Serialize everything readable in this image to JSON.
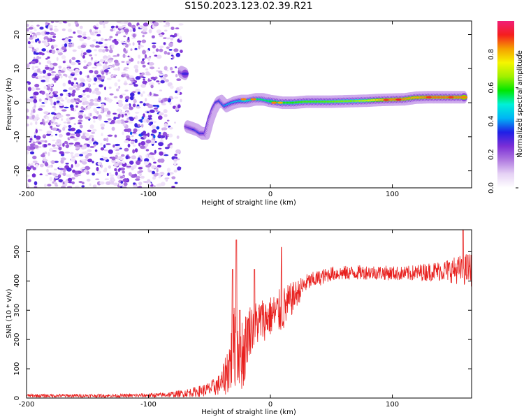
{
  "title": "S150.2023.123.02.39.R21",
  "chart_data": [
    {
      "type": "heatmap",
      "xlabel": "Height of straight line (km)",
      "ylabel": "Frequency (Hz)",
      "xlim": [
        -200,
        165
      ],
      "ylim": [
        -25,
        24
      ],
      "xticks": [
        -200,
        -100,
        0,
        100
      ],
      "xtick_labels": [
        "-200",
        "-100",
        "0",
        "100"
      ],
      "yticks": [
        -20,
        -10,
        0,
        10,
        20
      ],
      "ytick_labels": [
        "-20",
        "-10",
        "0",
        "10",
        "20"
      ],
      "colorbar": {
        "label": "Normalized spectral amplitude",
        "range": [
          0,
          1
        ],
        "ticks": [
          0.0,
          0.2,
          0.4,
          0.6,
          0.8
        ],
        "tick_labels": [
          "0.0",
          "0.2",
          "0.4",
          "0.6",
          "0.8"
        ],
        "colormap": [
          "#ffffff",
          "#e6d2f5",
          "#b07ae0",
          "#7b2fd6",
          "#1f1fe6",
          "#00b4f5",
          "#00f0d8",
          "#00e600",
          "#a0f000",
          "#f5f500",
          "#f5a000",
          "#f51e1e",
          "#f01e78"
        ]
      },
      "noise_region_x": [
        -200,
        -73
      ],
      "ridge": [
        {
          "x": -73,
          "y": 9,
          "v": 0.25
        },
        {
          "x": -70,
          "y": 8.5,
          "v": 0.3
        },
        {
          "x": -68,
          "y": -7,
          "v": 0.25
        },
        {
          "x": -64,
          "y": -7.5,
          "v": 0.3
        },
        {
          "x": -60,
          "y": -8,
          "v": 0.35
        },
        {
          "x": -56,
          "y": -9,
          "v": 0.35
        },
        {
          "x": -52,
          "y": -9,
          "v": 0.3
        },
        {
          "x": -49,
          "y": -5,
          "v": 0.3
        },
        {
          "x": -46,
          "y": -2,
          "v": 0.3
        },
        {
          "x": -43,
          "y": 0,
          "v": 0.35
        },
        {
          "x": -40,
          "y": 0.5,
          "v": 0.35
        },
        {
          "x": -36,
          "y": -1,
          "v": 0.4
        },
        {
          "x": -30,
          "y": 0,
          "v": 0.45
        },
        {
          "x": -24,
          "y": 0.5,
          "v": 0.45
        },
        {
          "x": -18,
          "y": 0.5,
          "v": 0.5
        },
        {
          "x": -12,
          "y": 1,
          "v": 0.55
        },
        {
          "x": -6,
          "y": 1,
          "v": 0.55
        },
        {
          "x": 0,
          "y": 0.5,
          "v": 0.55
        },
        {
          "x": 10,
          "y": 0,
          "v": 0.6
        },
        {
          "x": 20,
          "y": 0,
          "v": 0.6
        },
        {
          "x": 30,
          "y": 0.3,
          "v": 0.62
        },
        {
          "x": 40,
          "y": 0.3,
          "v": 0.62
        },
        {
          "x": 50,
          "y": 0.3,
          "v": 0.63
        },
        {
          "x": 60,
          "y": 0.4,
          "v": 0.65
        },
        {
          "x": 70,
          "y": 0.5,
          "v": 0.65
        },
        {
          "x": 80,
          "y": 0.6,
          "v": 0.7
        },
        {
          "x": 90,
          "y": 0.8,
          "v": 0.78
        },
        {
          "x": 100,
          "y": 0.9,
          "v": 0.85
        },
        {
          "x": 110,
          "y": 1,
          "v": 0.85
        },
        {
          "x": 120,
          "y": 1.5,
          "v": 0.82
        },
        {
          "x": 130,
          "y": 1.6,
          "v": 0.85
        },
        {
          "x": 140,
          "y": 1.6,
          "v": 0.87
        },
        {
          "x": 150,
          "y": 1.6,
          "v": 0.85
        },
        {
          "x": 160,
          "y": 1.6,
          "v": 0.85
        }
      ]
    },
    {
      "type": "line",
      "xlabel": "Height of straight line (km)",
      "ylabel": "SNR (10 * v/v)",
      "xlim": [
        -200,
        165
      ],
      "ylim": [
        0,
        575
      ],
      "xticks": [
        -200,
        -100,
        0,
        100
      ],
      "xtick_labels": [
        "-200",
        "-100",
        "0",
        "100"
      ],
      "yticks": [
        0,
        100,
        200,
        300,
        400,
        500
      ],
      "ytick_labels": [
        "0",
        "100",
        "200",
        "300",
        "400",
        "500"
      ],
      "color": "#e8201e",
      "envelope": [
        {
          "x": -200,
          "y": 8,
          "noise": 6
        },
        {
          "x": -120,
          "y": 8,
          "noise": 6
        },
        {
          "x": -90,
          "y": 10,
          "noise": 8
        },
        {
          "x": -75,
          "y": 14,
          "noise": 12
        },
        {
          "x": -60,
          "y": 22,
          "noise": 18
        },
        {
          "x": -50,
          "y": 30,
          "noise": 25
        },
        {
          "x": -40,
          "y": 50,
          "noise": 40
        },
        {
          "x": -33,
          "y": 120,
          "noise": 110
        },
        {
          "x": -28,
          "y": 200,
          "noise": 160
        },
        {
          "x": -22,
          "y": 150,
          "noise": 130
        },
        {
          "x": -18,
          "y": 230,
          "noise": 90
        },
        {
          "x": -10,
          "y": 260,
          "noise": 80
        },
        {
          "x": 0,
          "y": 280,
          "noise": 70
        },
        {
          "x": 10,
          "y": 300,
          "noise": 80
        },
        {
          "x": 20,
          "y": 350,
          "noise": 50
        },
        {
          "x": 30,
          "y": 395,
          "noise": 30
        },
        {
          "x": 50,
          "y": 425,
          "noise": 25
        },
        {
          "x": 80,
          "y": 430,
          "noise": 25
        },
        {
          "x": 110,
          "y": 425,
          "noise": 25
        },
        {
          "x": 140,
          "y": 435,
          "noise": 35
        },
        {
          "x": 165,
          "y": 440,
          "noise": 60
        }
      ],
      "spikes": [
        {
          "x": -31,
          "y": 440
        },
        {
          "x": -28,
          "y": 540
        },
        {
          "x": -25,
          "y": 300
        },
        {
          "x": -13,
          "y": 440
        },
        {
          "x": 9,
          "y": 515
        },
        {
          "x": 158,
          "y": 575
        }
      ]
    }
  ]
}
